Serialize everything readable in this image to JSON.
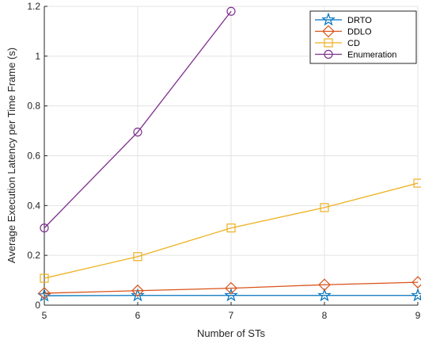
{
  "chart_data": {
    "type": "line",
    "xlabel": "Number of STs",
    "ylabel": "Average Execution Latency per Time Frame (s)",
    "x": [
      5,
      6,
      7,
      8,
      9
    ],
    "xlim": [
      5,
      9
    ],
    "ylim": [
      0,
      1.2
    ],
    "xticks": [
      "5",
      "6",
      "7",
      "8",
      "9"
    ],
    "yticks": [
      "0",
      "0.2",
      "0.4",
      "0.6",
      "0.8",
      "1",
      "1.2"
    ],
    "grid": true,
    "legend_position": "top-right",
    "series": [
      {
        "name": "DRTO",
        "color": "#0072BD",
        "marker": "star",
        "x": [
          5,
          6,
          7,
          8,
          9
        ],
        "values": [
          0.038,
          0.039,
          0.039,
          0.039,
          0.039
        ]
      },
      {
        "name": "DDLO",
        "color": "#D95319",
        "marker": "diamond",
        "x": [
          5,
          6,
          7,
          8,
          9
        ],
        "values": [
          0.048,
          0.058,
          0.068,
          0.082,
          0.092
        ]
      },
      {
        "name": "CD",
        "color": "#EDB120",
        "marker": "square",
        "x": [
          5,
          6,
          7,
          8,
          9
        ],
        "values": [
          0.108,
          0.195,
          0.31,
          0.392,
          0.49
        ]
      },
      {
        "name": "Enumeration",
        "color": "#7E2F8E",
        "marker": "circle",
        "x": [
          5,
          6,
          7
        ],
        "values": [
          0.31,
          0.695,
          1.18
        ]
      }
    ]
  }
}
